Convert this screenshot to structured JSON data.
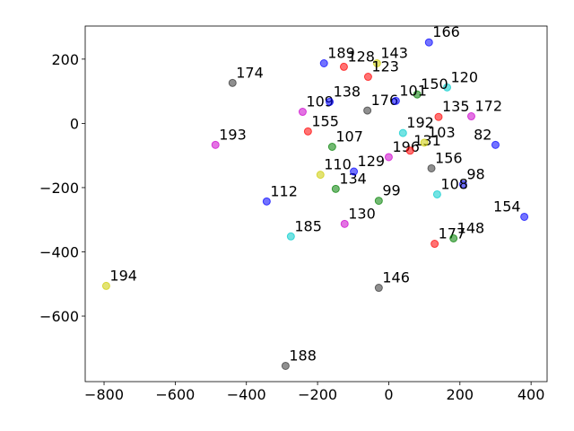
{
  "chart_data": {
    "type": "scatter",
    "x": [
      -439,
      -182,
      -487,
      -794,
      -290,
      -28,
      -275,
      -124,
      -343,
      129,
      182,
      381,
      209,
      300,
      232,
      136,
      -28,
      -149,
      -98,
      -192,
      -159,
      -242,
      -166,
      -227,
      113,
      164,
      -126,
      -33,
      -58,
      0,
      60,
      100,
      40,
      -60,
      140,
      80,
      20,
      120
    ],
    "values": [
      126,
      187,
      -67,
      -506,
      -755,
      -512,
      -352,
      -313,
      -243,
      -375,
      -358,
      -291,
      -190,
      -67,
      22,
      -221,
      -241,
      -204,
      -150,
      -160,
      -73,
      36,
      67,
      -25,
      252,
      112,
      176,
      187,
      145,
      -105,
      -85,
      -60,
      -30,
      40,
      20,
      90,
      70,
      -140
    ],
    "labels": [
      "174",
      "189",
      "193",
      "194",
      "188",
      "146",
      "185",
      "130",
      "112",
      "177",
      "148",
      "154",
      "98",
      "82",
      "172",
      "108",
      "99",
      "134",
      "129",
      "110",
      "107",
      "109",
      "138",
      "155",
      "166",
      "120",
      "128",
      "143",
      "123",
      "196",
      "131",
      "103",
      "192",
      "176",
      "135",
      "150",
      "101",
      "156"
    ],
    "colors": [
      "#333333",
      "#0000ff",
      "#cc00cc",
      "#cccc00",
      "#333333",
      "#333333",
      "#00cccc",
      "#cc00cc",
      "#0000ff",
      "#ff0000",
      "#008000",
      "#0000ff",
      "#0000ff",
      "#0000ff",
      "#cc00cc",
      "#00cccc",
      "#008000",
      "#008000",
      "#0000ff",
      "#cccc00",
      "#008000",
      "#cc00cc",
      "#0000ff",
      "#ff0000",
      "#0000ff",
      "#00cccc",
      "#ff0000",
      "#cccc00",
      "#ff0000",
      "#cc00cc",
      "#ff0000",
      "#cccc00",
      "#00cccc",
      "#333333",
      "#ff0000",
      "#008000",
      "#0000ff",
      "#333333"
    ],
    "xlim": [
      -853,
      445
    ],
    "ylim": [
      -804,
      303
    ],
    "xticks": [
      {
        "value": -800,
        "label": "−800"
      },
      {
        "value": -600,
        "label": "−600"
      },
      {
        "value": -400,
        "label": "−400"
      },
      {
        "value": -200,
        "label": "−200"
      },
      0,
      200,
      400
    ],
    "yticks": [
      {
        "value": -600,
        "label": "−600"
      },
      {
        "value": -400,
        "label": "−400"
      },
      {
        "value": -200,
        "label": "−200"
      },
      0,
      200
    ]
  }
}
